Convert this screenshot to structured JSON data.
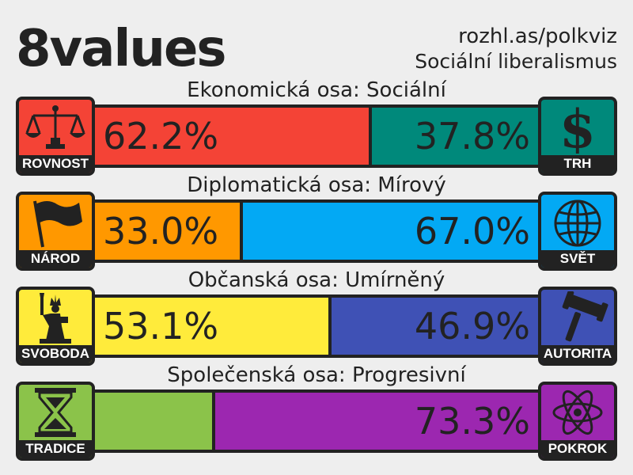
{
  "header": {
    "logo": "8values",
    "site": "rozhl.as/polkviz",
    "ideology": "Sociální liberalismus"
  },
  "axes": [
    {
      "title": "Ekonomická osa: Sociální",
      "left": {
        "label": "ROVNOST",
        "icon": "scales-icon",
        "percent": 62.2,
        "percent_text": "62.2%",
        "color": "#f44336"
      },
      "right": {
        "label": "TRH",
        "icon": "dollar-icon",
        "percent": 37.8,
        "percent_text": "37.8%",
        "color": "#00897b"
      }
    },
    {
      "title": "Diplomatická osa: Mírový",
      "left": {
        "label": "NÁROD",
        "icon": "flag-icon",
        "percent": 33.0,
        "percent_text": "33.0%",
        "color": "#ff9800"
      },
      "right": {
        "label": "SVĚT",
        "icon": "globe-icon",
        "percent": 67.0,
        "percent_text": "67.0%",
        "color": "#03a9f4"
      }
    },
    {
      "title": "Občanská osa: Umírněný",
      "left": {
        "label": "SVOBODA",
        "icon": "statue-of-liberty-icon",
        "percent": 53.1,
        "percent_text": "53.1%",
        "color": "#ffeb3b"
      },
      "right": {
        "label": "AUTORITA",
        "icon": "gavel-icon",
        "percent": 46.9,
        "percent_text": "46.9%",
        "color": "#3f51b5"
      }
    },
    {
      "title": "Společenská osa: Progresivní",
      "left": {
        "label": "TRADICE",
        "icon": "hourglass-icon",
        "percent": 26.7,
        "percent_text": "",
        "color": "#8bc34a"
      },
      "right": {
        "label": "POKROK",
        "icon": "atom-icon",
        "percent": 73.3,
        "percent_text": "73.3%",
        "color": "#9c27b0"
      }
    }
  ]
}
